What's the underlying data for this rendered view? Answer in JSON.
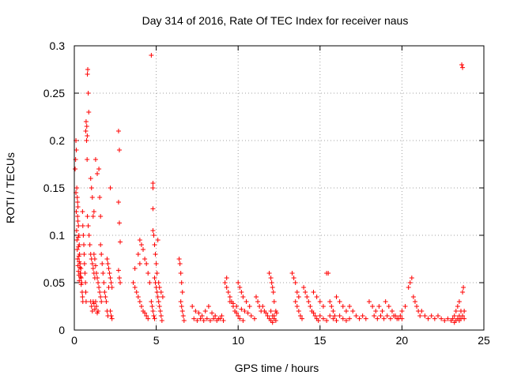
{
  "chart_data": {
    "type": "scatter",
    "title": "Day 314 of 2016, Rate Of TEC Index for receiver naus",
    "xlabel": "GPS time / hours",
    "ylabel": "ROTI / TECUs",
    "xlim": [
      0,
      25
    ],
    "ylim": [
      0,
      0.3
    ],
    "xticks": [
      0,
      5,
      10,
      15,
      20,
      25
    ],
    "xtick_labels": [
      "0",
      "5",
      "10",
      "15",
      "20",
      "25"
    ],
    "yticks": [
      0,
      0.05,
      0.1,
      0.15,
      0.2,
      0.25,
      0.3
    ],
    "ytick_labels": [
      "0",
      "0.05",
      "0.1",
      "0.15",
      "0.2",
      "0.25",
      "0.3"
    ],
    "grid": true,
    "marker": "+",
    "color": "#ff0000",
    "points": [
      [
        0.05,
        0.17
      ],
      [
        0.08,
        0.18
      ],
      [
        0.1,
        0.2
      ],
      [
        0.12,
        0.19
      ],
      [
        0.15,
        0.15
      ],
      [
        0.18,
        0.14
      ],
      [
        0.2,
        0.12
      ],
      [
        0.22,
        0.13
      ],
      [
        0.25,
        0.11
      ],
      [
        0.28,
        0.1
      ],
      [
        0.3,
        0.09
      ],
      [
        0.32,
        0.08
      ],
      [
        0.35,
        0.07
      ],
      [
        0.38,
        0.06
      ],
      [
        0.4,
        0.065
      ],
      [
        0.42,
        0.055
      ],
      [
        0.45,
        0.05
      ],
      [
        0.48,
        0.04
      ],
      [
        0.5,
        0.035
      ],
      [
        0.52,
        0.03
      ],
      [
        0.1,
        0.145
      ],
      [
        0.12,
        0.125
      ],
      [
        0.14,
        0.105
      ],
      [
        0.16,
        0.095
      ],
      [
        0.18,
        0.085
      ],
      [
        0.2,
        0.075
      ],
      [
        0.22,
        0.068
      ],
      [
        0.25,
        0.062
      ],
      [
        0.28,
        0.058
      ],
      [
        0.3,
        0.052
      ],
      [
        0.2,
        0.135
      ],
      [
        0.22,
        0.115
      ],
      [
        0.24,
        0.098
      ],
      [
        0.26,
        0.088
      ],
      [
        0.28,
        0.078
      ],
      [
        0.3,
        0.072
      ],
      [
        0.34,
        0.066
      ],
      [
        0.36,
        0.06
      ],
      [
        0.38,
        0.056
      ],
      [
        0.42,
        0.048
      ],
      [
        0.5,
        0.125
      ],
      [
        0.52,
        0.11
      ],
      [
        0.55,
        0.1
      ],
      [
        0.58,
        0.09
      ],
      [
        0.6,
        0.08
      ],
      [
        0.62,
        0.07
      ],
      [
        0.65,
        0.06
      ],
      [
        0.68,
        0.05
      ],
      [
        0.7,
        0.04
      ],
      [
        0.72,
        0.03
      ],
      [
        0.7,
        0.21
      ],
      [
        0.72,
        0.22
      ],
      [
        0.75,
        0.2
      ],
      [
        0.78,
        0.18
      ],
      [
        0.8,
        0.27
      ],
      [
        0.82,
        0.275
      ],
      [
        0.85,
        0.25
      ],
      [
        0.88,
        0.23
      ],
      [
        0.76,
        0.215
      ],
      [
        0.79,
        0.205
      ],
      [
        0.8,
        0.12
      ],
      [
        0.85,
        0.11
      ],
      [
        0.9,
        0.1
      ],
      [
        0.95,
        0.09
      ],
      [
        1.0,
        0.08
      ],
      [
        1.05,
        0.075
      ],
      [
        1.1,
        0.07
      ],
      [
        1.15,
        0.065
      ],
      [
        1.2,
        0.06
      ],
      [
        1.25,
        0.055
      ],
      [
        1.0,
        0.16
      ],
      [
        1.05,
        0.15
      ],
      [
        1.1,
        0.14
      ],
      [
        1.15,
        0.12
      ],
      [
        1.3,
        0.18
      ],
      [
        1.4,
        0.165
      ],
      [
        1.5,
        0.17
      ],
      [
        1.55,
        0.14
      ],
      [
        1.6,
        0.12
      ],
      [
        1.2,
        0.125
      ],
      [
        1.0,
        0.03
      ],
      [
        1.05,
        0.025
      ],
      [
        1.1,
        0.02
      ],
      [
        1.15,
        0.03
      ],
      [
        1.2,
        0.028
      ],
      [
        1.25,
        0.022
      ],
      [
        1.3,
        0.03
      ],
      [
        1.35,
        0.025
      ],
      [
        1.4,
        0.018
      ],
      [
        1.45,
        0.02
      ],
      [
        1.6,
        0.09
      ],
      [
        1.65,
        0.08
      ],
      [
        1.7,
        0.07
      ],
      [
        1.75,
        0.06
      ],
      [
        1.8,
        0.05
      ],
      [
        1.85,
        0.04
      ],
      [
        1.9,
        0.035
      ],
      [
        1.95,
        0.03
      ],
      [
        2.0,
        0.02
      ],
      [
        2.05,
        0.015
      ],
      [
        1.2,
        0.08
      ],
      [
        1.25,
        0.075
      ],
      [
        1.3,
        0.068
      ],
      [
        1.35,
        0.06
      ],
      [
        1.4,
        0.055
      ],
      [
        1.45,
        0.05
      ],
      [
        1.5,
        0.045
      ],
      [
        1.55,
        0.04
      ],
      [
        1.6,
        0.035
      ],
      [
        1.65,
        0.03
      ],
      [
        2.0,
        0.075
      ],
      [
        2.05,
        0.07
      ],
      [
        2.1,
        0.065
      ],
      [
        2.15,
        0.06
      ],
      [
        2.2,
        0.055
      ],
      [
        2.25,
        0.05
      ],
      [
        2.3,
        0.045
      ],
      [
        2.2,
        0.02
      ],
      [
        2.25,
        0.015
      ],
      [
        2.3,
        0.012
      ],
      [
        2.2,
        0.15
      ],
      [
        2.7,
        0.21
      ],
      [
        2.75,
        0.19
      ],
      [
        2.7,
        0.135
      ],
      [
        2.75,
        0.113
      ],
      [
        2.8,
        0.093
      ],
      [
        2.7,
        0.063
      ],
      [
        2.75,
        0.055
      ],
      [
        2.8,
        0.05
      ],
      [
        2.1,
        0.045
      ],
      [
        3.6,
        0.05
      ],
      [
        3.7,
        0.045
      ],
      [
        3.8,
        0.04
      ],
      [
        3.9,
        0.035
      ],
      [
        4.0,
        0.03
      ],
      [
        4.1,
        0.025
      ],
      [
        4.2,
        0.02
      ],
      [
        4.3,
        0.018
      ],
      [
        4.4,
        0.015
      ],
      [
        4.5,
        0.012
      ],
      [
        4.0,
        0.095
      ],
      [
        4.1,
        0.09
      ],
      [
        4.2,
        0.085
      ],
      [
        3.9,
        0.08
      ],
      [
        4.3,
        0.075
      ],
      [
        4.4,
        0.07
      ],
      [
        4.5,
        0.06
      ],
      [
        4.6,
        0.05
      ],
      [
        3.7,
        0.065
      ],
      [
        4.0,
        0.07
      ],
      [
        4.7,
        0.29
      ],
      [
        4.8,
        0.155
      ],
      [
        4.8,
        0.15
      ],
      [
        4.8,
        0.128
      ],
      [
        4.8,
        0.105
      ],
      [
        4.85,
        0.1
      ],
      [
        4.9,
        0.09
      ],
      [
        4.95,
        0.08
      ],
      [
        5.0,
        0.07
      ],
      [
        5.05,
        0.06
      ],
      [
        4.9,
        0.055
      ],
      [
        4.95,
        0.05
      ],
      [
        5.0,
        0.045
      ],
      [
        5.05,
        0.04
      ],
      [
        5.1,
        0.035
      ],
      [
        5.15,
        0.03
      ],
      [
        5.2,
        0.025
      ],
      [
        5.25,
        0.02
      ],
      [
        5.3,
        0.015
      ],
      [
        5.35,
        0.01
      ],
      [
        5.1,
        0.095
      ],
      [
        5.15,
        0.05
      ],
      [
        5.2,
        0.045
      ],
      [
        5.3,
        0.04
      ],
      [
        5.4,
        0.035
      ],
      [
        4.7,
        0.03
      ],
      [
        4.75,
        0.025
      ],
      [
        4.8,
        0.02
      ],
      [
        4.85,
        0.015
      ],
      [
        4.9,
        0.012
      ],
      [
        6.4,
        0.075
      ],
      [
        6.45,
        0.07
      ],
      [
        6.5,
        0.06
      ],
      [
        6.55,
        0.05
      ],
      [
        6.6,
        0.04
      ],
      [
        6.5,
        0.03
      ],
      [
        6.55,
        0.025
      ],
      [
        6.6,
        0.02
      ],
      [
        6.65,
        0.015
      ],
      [
        6.7,
        0.01
      ],
      [
        7.2,
        0.025
      ],
      [
        7.4,
        0.02
      ],
      [
        7.6,
        0.018
      ],
      [
        7.8,
        0.015
      ],
      [
        8.0,
        0.02
      ],
      [
        8.2,
        0.025
      ],
      [
        8.4,
        0.018
      ],
      [
        8.6,
        0.015
      ],
      [
        8.8,
        0.012
      ],
      [
        9.0,
        0.015
      ],
      [
        7.3,
        0.012
      ],
      [
        7.5,
        0.01
      ],
      [
        7.7,
        0.012
      ],
      [
        7.9,
        0.01
      ],
      [
        8.1,
        0.012
      ],
      [
        8.3,
        0.01
      ],
      [
        8.5,
        0.012
      ],
      [
        8.7,
        0.01
      ],
      [
        8.9,
        0.012
      ],
      [
        9.1,
        0.01
      ],
      [
        9.2,
        0.05
      ],
      [
        9.3,
        0.045
      ],
      [
        9.4,
        0.04
      ],
      [
        9.5,
        0.035
      ],
      [
        9.6,
        0.03
      ],
      [
        9.7,
        0.025
      ],
      [
        9.8,
        0.02
      ],
      [
        9.9,
        0.018
      ],
      [
        10.0,
        0.015
      ],
      [
        10.1,
        0.012
      ],
      [
        9.3,
        0.055
      ],
      [
        9.5,
        0.03
      ],
      [
        9.7,
        0.028
      ],
      [
        9.9,
        0.025
      ],
      [
        10.2,
        0.022
      ],
      [
        10.4,
        0.02
      ],
      [
        10.6,
        0.018
      ],
      [
        10.8,
        0.015
      ],
      [
        11.0,
        0.012
      ],
      [
        10.3,
        0.01
      ],
      [
        10.0,
        0.05
      ],
      [
        10.1,
        0.045
      ],
      [
        10.2,
        0.04
      ],
      [
        10.3,
        0.035
      ],
      [
        10.5,
        0.03
      ],
      [
        10.7,
        0.025
      ],
      [
        11.1,
        0.035
      ],
      [
        11.2,
        0.03
      ],
      [
        11.3,
        0.025
      ],
      [
        11.4,
        0.02
      ],
      [
        11.5,
        0.025
      ],
      [
        11.6,
        0.02
      ],
      [
        11.7,
        0.018
      ],
      [
        11.8,
        0.015
      ],
      [
        11.9,
        0.06
      ],
      [
        12.0,
        0.055
      ],
      [
        12.05,
        0.05
      ],
      [
        12.1,
        0.045
      ],
      [
        12.15,
        0.04
      ],
      [
        12.2,
        0.03
      ],
      [
        12.0,
        0.02
      ],
      [
        12.1,
        0.015
      ],
      [
        12.2,
        0.012
      ],
      [
        12.3,
        0.01
      ],
      [
        11.9,
        0.012
      ],
      [
        12.0,
        0.01
      ],
      [
        12.1,
        0.008
      ],
      [
        12.2,
        0.015
      ],
      [
        12.3,
        0.02
      ],
      [
        12.35,
        0.018
      ],
      [
        13.3,
        0.06
      ],
      [
        13.4,
        0.055
      ],
      [
        13.5,
        0.05
      ],
      [
        13.6,
        0.04
      ],
      [
        13.7,
        0.035
      ],
      [
        13.5,
        0.03
      ],
      [
        13.6,
        0.025
      ],
      [
        13.7,
        0.02
      ],
      [
        13.8,
        0.015
      ],
      [
        13.9,
        0.012
      ],
      [
        14.0,
        0.045
      ],
      [
        14.1,
        0.04
      ],
      [
        14.2,
        0.035
      ],
      [
        14.3,
        0.03
      ],
      [
        14.4,
        0.025
      ],
      [
        14.5,
        0.02
      ],
      [
        14.6,
        0.018
      ],
      [
        14.7,
        0.015
      ],
      [
        14.8,
        0.012
      ],
      [
        14.9,
        0.01
      ],
      [
        14.6,
        0.04
      ],
      [
        14.8,
        0.035
      ],
      [
        15.0,
        0.03
      ],
      [
        15.2,
        0.025
      ],
      [
        15.4,
        0.06
      ],
      [
        15.5,
        0.06
      ],
      [
        15.6,
        0.03
      ],
      [
        15.7,
        0.025
      ],
      [
        15.8,
        0.02
      ],
      [
        15.9,
        0.015
      ],
      [
        15.0,
        0.015
      ],
      [
        15.2,
        0.012
      ],
      [
        15.4,
        0.01
      ],
      [
        15.6,
        0.015
      ],
      [
        15.8,
        0.012
      ],
      [
        16.0,
        0.01
      ],
      [
        16.2,
        0.015
      ],
      [
        16.4,
        0.012
      ],
      [
        16.6,
        0.01
      ],
      [
        16.8,
        0.012
      ],
      [
        16.0,
        0.035
      ],
      [
        16.2,
        0.03
      ],
      [
        16.4,
        0.025
      ],
      [
        16.6,
        0.02
      ],
      [
        16.8,
        0.025
      ],
      [
        17.0,
        0.02
      ],
      [
        17.2,
        0.015
      ],
      [
        17.4,
        0.012
      ],
      [
        17.6,
        0.015
      ],
      [
        17.8,
        0.012
      ],
      [
        18.0,
        0.03
      ],
      [
        18.2,
        0.025
      ],
      [
        18.4,
        0.02
      ],
      [
        18.6,
        0.025
      ],
      [
        18.8,
        0.02
      ],
      [
        19.0,
        0.03
      ],
      [
        19.2,
        0.025
      ],
      [
        19.4,
        0.02
      ],
      [
        19.6,
        0.015
      ],
      [
        19.8,
        0.012
      ],
      [
        18.3,
        0.015
      ],
      [
        18.5,
        0.012
      ],
      [
        18.7,
        0.015
      ],
      [
        18.9,
        0.012
      ],
      [
        19.1,
        0.015
      ],
      [
        19.3,
        0.012
      ],
      [
        19.5,
        0.015
      ],
      [
        19.7,
        0.012
      ],
      [
        19.9,
        0.015
      ],
      [
        20.0,
        0.012
      ],
      [
        20.0,
        0.02
      ],
      [
        20.2,
        0.025
      ],
      [
        20.4,
        0.045
      ],
      [
        20.5,
        0.05
      ],
      [
        20.6,
        0.055
      ],
      [
        20.7,
        0.035
      ],
      [
        20.8,
        0.03
      ],
      [
        20.9,
        0.025
      ],
      [
        21.0,
        0.02
      ],
      [
        21.1,
        0.015
      ],
      [
        21.2,
        0.02
      ],
      [
        21.4,
        0.015
      ],
      [
        21.6,
        0.012
      ],
      [
        21.8,
        0.015
      ],
      [
        22.0,
        0.012
      ],
      [
        22.2,
        0.015
      ],
      [
        22.4,
        0.012
      ],
      [
        22.6,
        0.01
      ],
      [
        22.8,
        0.012
      ],
      [
        23.0,
        0.01
      ],
      [
        23.0,
        0.01
      ],
      [
        23.1,
        0.012
      ],
      [
        23.2,
        0.015
      ],
      [
        23.3,
        0.02
      ],
      [
        23.4,
        0.025
      ],
      [
        23.5,
        0.03
      ],
      [
        23.6,
        0.02
      ],
      [
        23.7,
        0.04
      ],
      [
        23.75,
        0.045
      ],
      [
        23.8,
        0.02
      ],
      [
        23.65,
        0.28
      ],
      [
        23.7,
        0.277
      ],
      [
        23.4,
        0.012
      ],
      [
        23.5,
        0.01
      ],
      [
        23.6,
        0.012
      ],
      [
        23.7,
        0.015
      ],
      [
        23.8,
        0.012
      ],
      [
        23.2,
        0.008
      ],
      [
        23.3,
        0.01
      ],
      [
        23.5,
        0.015
      ]
    ]
  }
}
